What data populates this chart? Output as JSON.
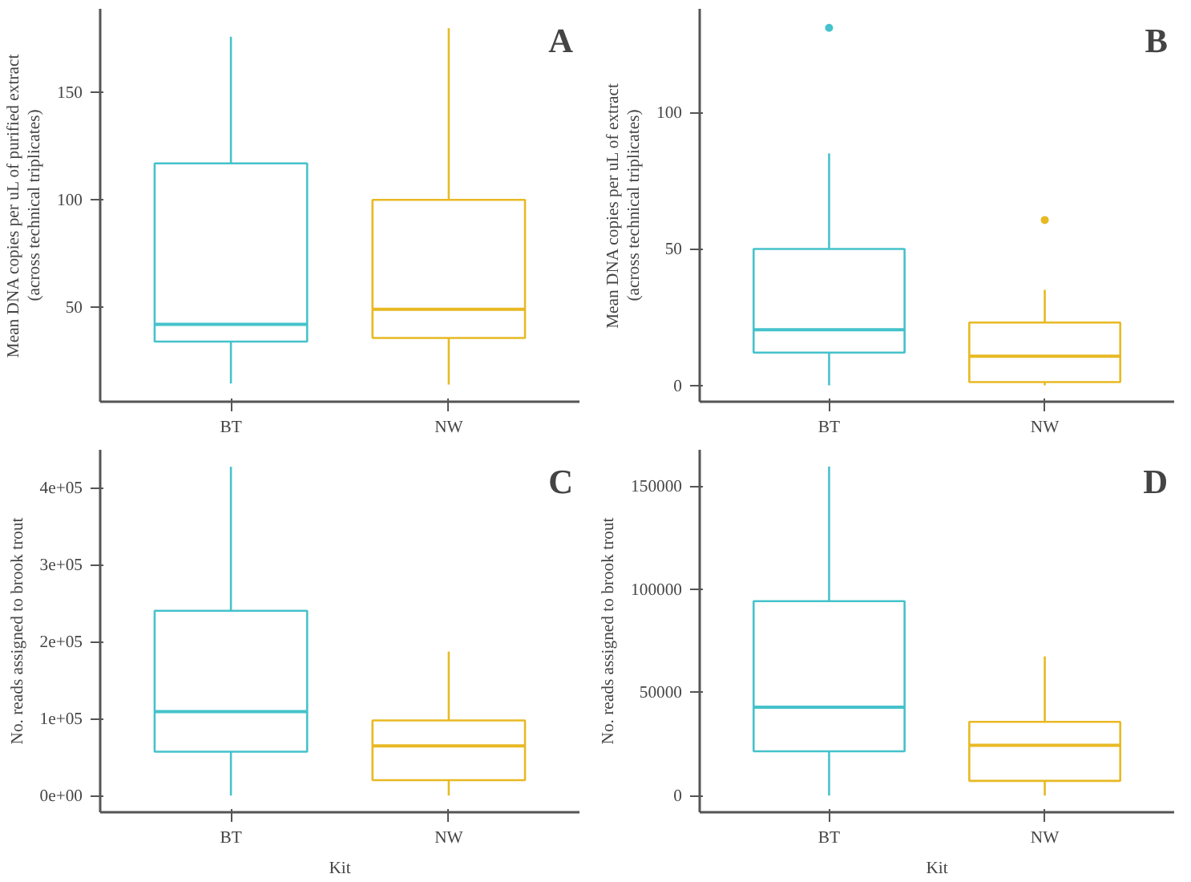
{
  "chart_data": [
    {
      "type": "box",
      "categories": [
        "BT",
        "NW"
      ],
      "ylabel": "Mean DNA copies per uL of purified extract\n(across technical triplicates)",
      "annotations": [
        "A"
      ],
      "colors": [
        "#45c2cb",
        "#e8b923"
      ],
      "ylim": [
        6,
        189
      ],
      "yticks": [
        50,
        100,
        150
      ],
      "grid": false,
      "boxes": [
        {
          "low": 14.5,
          "q1": 34,
          "median": 42,
          "q3": 117,
          "high": 176
        },
        {
          "low": 14,
          "q1": 35.7,
          "median": 49,
          "q3": 100,
          "high": 180
        }
      ]
    },
    {
      "type": "box",
      "categories": [
        "BT",
        "NW"
      ],
      "ylabel": "Mean DNA copies per uL of extract\n(across technical triplicates)",
      "annotations": [
        "B"
      ],
      "colors": [
        "#45c2cb",
        "#e8b923"
      ],
      "ylim": [
        -6,
        138
      ],
      "yticks": [
        0,
        50,
        100
      ],
      "grid": false,
      "boxes": [
        {
          "low": 0,
          "q1": 12,
          "median": 20.4,
          "q3": 50,
          "high": 85,
          "outliers": [
            131
          ]
        },
        {
          "low": 0,
          "q1": 1.2,
          "median": 10.7,
          "q3": 23,
          "high": 35,
          "outliers": [
            60.6
          ]
        }
      ]
    },
    {
      "type": "box",
      "categories": [
        "BT",
        "NW"
      ],
      "xlabel": "Kit",
      "ylabel": "No. reads assigned to brook trout",
      "annotations": [
        "C"
      ],
      "colors": [
        "#45c2cb",
        "#e8b923"
      ],
      "ylim": [
        -21700,
        449000
      ],
      "yticks": [
        {
          "value": 0,
          "label": "0e+00"
        },
        {
          "value": 100000,
          "label": "1e+05"
        },
        {
          "value": 200000,
          "label": "2e+05"
        },
        {
          "value": 300000,
          "label": "3e+05"
        },
        {
          "value": 400000,
          "label": "4e+05"
        }
      ],
      "grid": false,
      "boxes": [
        {
          "low": 0,
          "q1": 57000,
          "median": 109000,
          "q3": 240000,
          "high": 427000
        },
        {
          "low": 0,
          "q1": 20000,
          "median": 64600,
          "q3": 97500,
          "high": 187000
        }
      ]
    },
    {
      "type": "box",
      "categories": [
        "BT",
        "NW"
      ],
      "xlabel": "Kit",
      "ylabel": "No. reads assigned to brook trout",
      "annotations": [
        "D"
      ],
      "colors": [
        "#45c2cb",
        "#e8b923"
      ],
      "ylim": [
        -8100,
        167500
      ],
      "yticks": [
        0,
        50000,
        100000,
        150000
      ],
      "grid": false,
      "boxes": [
        {
          "low": 0,
          "q1": 21400,
          "median": 42800,
          "q3": 94200,
          "high": 159400
        },
        {
          "low": 0,
          "q1": 7100,
          "median": 24300,
          "q3": 35700,
          "high": 67400
        }
      ]
    }
  ]
}
